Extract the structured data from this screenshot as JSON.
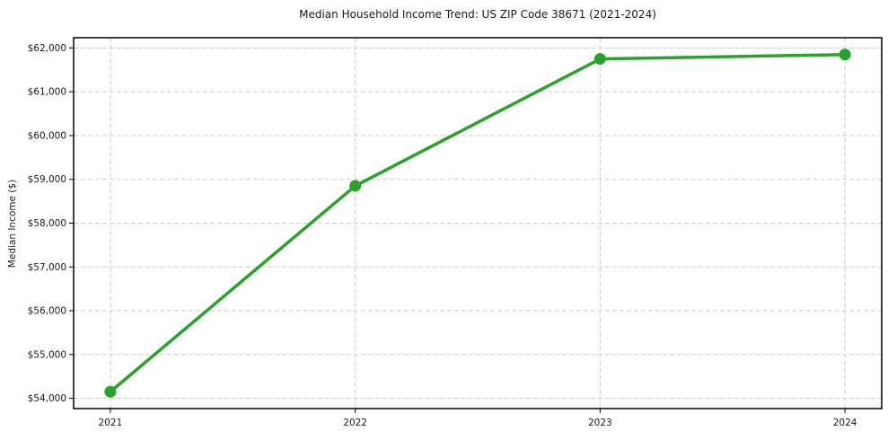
{
  "figure": {
    "title": "Median Household Income Trend: US ZIP Code 38671 (2021-2024)",
    "ylabel": "Median Income ($)"
  },
  "chart_data": {
    "type": "line",
    "title": "Median Household Income Trend: US ZIP Code 38671 (2021-2024)",
    "xlabel": "",
    "ylabel": "Median Income ($)",
    "categories": [
      "2021",
      "2022",
      "2023",
      "2024"
    ],
    "series": [
      {
        "name": "Median Household Income",
        "values": [
          54150,
          58850,
          61750,
          61850
        ]
      }
    ],
    "yticks": [
      54000,
      55000,
      56000,
      57000,
      58000,
      59000,
      60000,
      61000,
      62000
    ],
    "ytick_labels": [
      "$54,000",
      "$55,000",
      "$56,000",
      "$57,000",
      "$58,000",
      "$59,000",
      "$60,000",
      "$61,000",
      "$62,000"
    ],
    "ylim": [
      53765,
      62235
    ],
    "xlim_index": [
      -0.15,
      3.15
    ],
    "grid": true,
    "grid_style": "dashed",
    "legend": "none",
    "line_width": 3.5,
    "marker": {
      "shape": "circle",
      "radius": 6.5
    },
    "colors": {
      "line": "#2ca02c",
      "marker": "#2ca02c",
      "grid": "#cdcdcd",
      "spine": "#000000",
      "text": "#1a1a1a",
      "background": "#ffffff"
    }
  }
}
